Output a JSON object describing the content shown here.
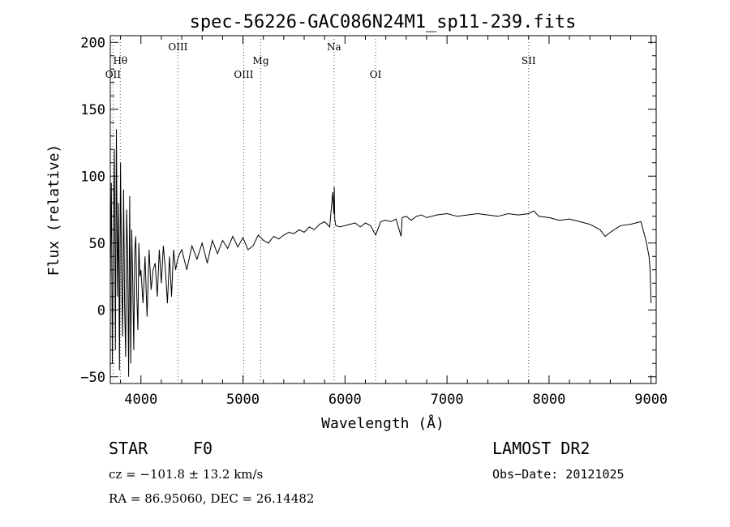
{
  "chart_data": {
    "type": "line",
    "title": "spec-56226-GAC086N24M1_sp11-239.fits",
    "xlabel": "Wavelength (Å)",
    "ylabel": "Flux (relative)",
    "xlim": [
      3700,
      9050
    ],
    "ylim": [
      -55,
      205
    ],
    "x_ticks": [
      4000,
      5000,
      6000,
      7000,
      8000,
      9000
    ],
    "y_ticks": [
      -50,
      0,
      50,
      100,
      150,
      200
    ],
    "x_tick_labels": [
      "4000",
      "5000",
      "6000",
      "7000",
      "8000",
      "9000"
    ],
    "y_tick_labels": [
      "−50",
      "0",
      "50",
      "100",
      "150",
      "200"
    ],
    "grid": false,
    "line_color": "#000000",
    "series": [
      {
        "name": "",
        "x": [
          3700,
          3710,
          3720,
          3730,
          3740,
          3750,
          3760,
          3770,
          3780,
          3790,
          3800,
          3810,
          3820,
          3830,
          3840,
          3850,
          3860,
          3870,
          3880,
          3890,
          3900,
          3910,
          3920,
          3930,
          3940,
          3950,
          3960,
          3970,
          3980,
          3990,
          4000,
          4020,
          4040,
          4060,
          4080,
          4100,
          4120,
          4140,
          4160,
          4180,
          4200,
          4220,
          4240,
          4260,
          4280,
          4300,
          4320,
          4340,
          4360,
          4380,
          4400,
          4450,
          4500,
          4550,
          4600,
          4650,
          4700,
          4750,
          4800,
          4850,
          4900,
          4950,
          5000,
          5050,
          5100,
          5150,
          5200,
          5250,
          5300,
          5350,
          5400,
          5450,
          5500,
          5550,
          5600,
          5650,
          5700,
          5750,
          5800,
          5850,
          5880,
          5890,
          5895,
          5900,
          5910,
          5950,
          6000,
          6050,
          6100,
          6150,
          6200,
          6250,
          6300,
          6350,
          6400,
          6450,
          6500,
          6550,
          6560,
          6600,
          6650,
          6700,
          6750,
          6800,
          6900,
          7000,
          7100,
          7200,
          7300,
          7400,
          7500,
          7600,
          7700,
          7800,
          7850,
          7900,
          8000,
          8100,
          8200,
          8300,
          8400,
          8500,
          8550,
          8600,
          8700,
          8800,
          8900,
          8950,
          8980,
          8990,
          9000
        ],
        "y": [
          20,
          95,
          -40,
          60,
          120,
          -30,
          135,
          10,
          80,
          -45,
          110,
          30,
          -20,
          90,
          5,
          -35,
          75,
          40,
          -50,
          85,
          -40,
          60,
          20,
          -30,
          45,
          55,
          10,
          -15,
          50,
          25,
          30,
          5,
          40,
          -5,
          45,
          15,
          30,
          35,
          10,
          45,
          20,
          48,
          30,
          5,
          40,
          10,
          45,
          30,
          38,
          42,
          45,
          30,
          48,
          38,
          50,
          35,
          52,
          42,
          52,
          46,
          55,
          47,
          54,
          45,
          48,
          56,
          52,
          50,
          55,
          53,
          56,
          58,
          57,
          60,
          58,
          62,
          60,
          64,
          66,
          62,
          88,
          72,
          92,
          68,
          63,
          62,
          63,
          64,
          65,
          62,
          65,
          63,
          56,
          66,
          67,
          66,
          68,
          55,
          69,
          70,
          67,
          70,
          71,
          69,
          71,
          72,
          70,
          71,
          72,
          71,
          70,
          72,
          71,
          72,
          74,
          70,
          69,
          67,
          68,
          66,
          64,
          60,
          55,
          58,
          63,
          64,
          66,
          52,
          40,
          30,
          5
        ]
      }
    ],
    "annotations": [
      {
        "label": "OII",
        "wavelength": 3727,
        "row": 3
      },
      {
        "label": "Hθ",
        "wavelength": 3798,
        "row": 2
      },
      {
        "label": "OIII",
        "wavelength": 4363,
        "row": 1
      },
      {
        "label": "OIII",
        "wavelength": 5007,
        "row": 3
      },
      {
        "label": "Mg",
        "wavelength": 5175,
        "row": 2
      },
      {
        "label": "Na",
        "wavelength": 5893,
        "row": 1
      },
      {
        "label": "OI",
        "wavelength": 6300,
        "row": 3
      },
      {
        "label": "SII",
        "wavelength": 7800,
        "row": 2
      }
    ]
  },
  "info": {
    "object_class": "STAR",
    "subclass": "F0",
    "survey": "LAMOST DR2",
    "cz": "cz = −101.8 ± 13.2 km/s",
    "obs_date": "Obs−Date: 20121025",
    "coords": "RA =  86.95060, DEC =  26.14482"
  }
}
